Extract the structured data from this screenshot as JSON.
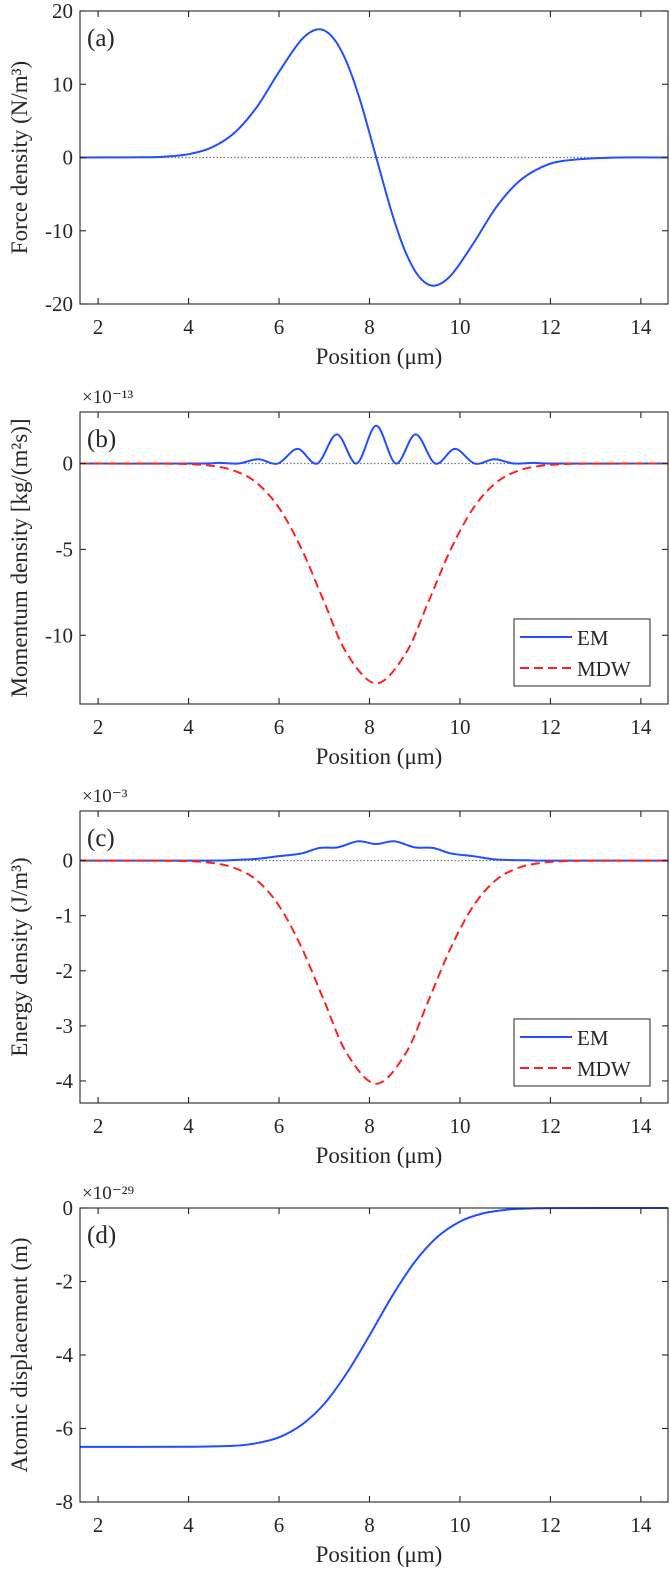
{
  "chart_data": [
    {
      "type": "line",
      "panel": "(a)",
      "xlabel": "Position (μm)",
      "ylabel": "Force density (N/m³)",
      "exponent": "",
      "xlim": [
        1.6,
        14.6
      ],
      "ylim": [
        -20,
        20
      ],
      "xticks": [
        2,
        4,
        6,
        8,
        10,
        12,
        14
      ],
      "yticks": [
        20,
        10,
        0,
        -10,
        -20
      ],
      "zero_line": true,
      "legend": null,
      "series": [
        {
          "name": "Force",
          "color": "#1f4fff",
          "dash": false,
          "x": [
            1.6,
            3,
            3.5,
            4,
            4.5,
            5,
            5.5,
            6,
            6.5,
            6.88,
            7.2,
            7.5,
            7.8,
            8.15,
            8.5,
            8.8,
            9.1,
            9.42,
            9.8,
            10.3,
            10.8,
            11.3,
            11.8,
            12.3,
            13.3,
            14.6
          ],
          "y": [
            0,
            0.03,
            0.13,
            0.45,
            1.34,
            3.29,
            6.8,
            11.7,
            16.1,
            17.5,
            16.3,
            12.95,
            7.67,
            0,
            -7.67,
            -12.95,
            -16.3,
            -17.5,
            -16.1,
            -11.7,
            -6.8,
            -3.29,
            -1.34,
            -0.45,
            -0.03,
            0
          ]
        }
      ]
    },
    {
      "type": "line",
      "panel": "(b)",
      "xlabel": "Position (μm)",
      "ylabel": "Momentum density [kg/(m²s)]",
      "exponent": "×10⁻¹³",
      "xlim": [
        1.6,
        14.6
      ],
      "ylim": [
        -14,
        3
      ],
      "xticks": [
        2,
        4,
        6,
        8,
        10,
        12,
        14
      ],
      "yticks": [
        0,
        -5,
        -10
      ],
      "zero_line": true,
      "legend": {
        "position": "bottom-right",
        "entries": [
          "EM",
          "MDW"
        ]
      },
      "series": [
        {
          "name": "EM",
          "color": "#1f4fff",
          "dash": false,
          "x": [
            1.6,
            4.2,
            4.67,
            5.1,
            5.54,
            5.975,
            6.41,
            6.845,
            7.28,
            7.715,
            8.15,
            8.585,
            9.02,
            9.455,
            9.89,
            10.325,
            10.76,
            11.195,
            11.63,
            12.1,
            14.6
          ],
          "y": [
            0,
            0,
            0.04,
            0,
            0.25,
            0,
            0.85,
            0,
            1.7,
            0,
            2.2,
            0,
            1.7,
            0,
            0.85,
            0,
            0.25,
            0,
            0.04,
            0,
            0
          ]
        },
        {
          "name": "MDW",
          "color": "#ff2020",
          "dash": true,
          "x": [
            1.6,
            3,
            3.5,
            4,
            4.5,
            5,
            5.5,
            6,
            6.5,
            7,
            7.5,
            8.15,
            8.8,
            9.3,
            9.8,
            10.3,
            10.8,
            11.3,
            11.8,
            12.3,
            12.8,
            13.3,
            14.6
          ],
          "y": [
            0,
            -0.001,
            -0.007,
            -0.033,
            -0.13,
            -0.41,
            -1.11,
            -2.58,
            -4.98,
            -8.07,
            -11.06,
            -12.8,
            -11.06,
            -8.07,
            -4.98,
            -2.58,
            -1.11,
            -0.41,
            -0.13,
            -0.033,
            -0.007,
            -0.001,
            0
          ]
        }
      ]
    },
    {
      "type": "line",
      "panel": "(c)",
      "xlabel": "Position (μm)",
      "ylabel": "Energy density (J/m³)",
      "exponent": "×10⁻³",
      "xlim": [
        1.6,
        14.6
      ],
      "ylim": [
        -4.4,
        0.9
      ],
      "xticks": [
        2,
        4,
        6,
        8,
        10,
        12,
        14
      ],
      "yticks": [
        0,
        -1,
        -2,
        -3,
        -4
      ],
      "zero_line": true,
      "legend": {
        "position": "bottom-right",
        "entries": [
          "EM",
          "MDW"
        ]
      },
      "series": [
        {
          "name": "EM",
          "color": "#1f4fff",
          "dash": false,
          "x": [
            1.6,
            4.5,
            5,
            5.5,
            6,
            6.5,
            6.9,
            7.3,
            7.75,
            8.15,
            8.55,
            9.0,
            9.4,
            9.8,
            10.3,
            10.8,
            11.5,
            12,
            14.6
          ],
          "y": [
            0,
            0,
            0.01,
            0.03,
            0.08,
            0.13,
            0.23,
            0.24,
            0.35,
            0.3,
            0.35,
            0.24,
            0.23,
            0.13,
            0.08,
            0.02,
            0.005,
            0,
            0
          ]
        },
        {
          "name": "MDW",
          "color": "#ff2020",
          "dash": true,
          "x": [
            1.6,
            3,
            3.5,
            4,
            4.5,
            5,
            5.5,
            6,
            6.5,
            7,
            7.5,
            8.15,
            8.8,
            9.3,
            9.8,
            10.3,
            10.8,
            11.3,
            11.8,
            12.3,
            12.8,
            13.3,
            14.6
          ],
          "y": [
            0,
            -0.0003,
            -0.002,
            -0.01,
            -0.041,
            -0.13,
            -0.35,
            -0.82,
            -1.58,
            -2.55,
            -3.5,
            -4.05,
            -3.5,
            -2.55,
            -1.58,
            -0.82,
            -0.35,
            -0.13,
            -0.041,
            -0.01,
            -0.002,
            -0.0003,
            0
          ]
        }
      ]
    },
    {
      "type": "line",
      "panel": "(d)",
      "xlabel": "Position (μm)",
      "ylabel": "Atomic displacement (m)",
      "exponent": "×10⁻²⁹",
      "xlim": [
        1.6,
        14.6
      ],
      "ylim": [
        -8,
        0
      ],
      "xticks": [
        2,
        4,
        6,
        8,
        10,
        12,
        14
      ],
      "yticks": [
        0,
        -2,
        -4,
        -6,
        -8
      ],
      "zero_line": false,
      "legend": null,
      "series": [
        {
          "name": "Displacement",
          "color": "#1f4fff",
          "dash": false,
          "x": [
            1.6,
            4,
            5,
            5.5,
            6,
            6.5,
            7,
            7.5,
            8,
            8.5,
            9,
            9.5,
            10,
            10.5,
            11,
            11.5,
            12,
            14.6
          ],
          "y": [
            -6.5,
            -6.498,
            -6.47,
            -6.4,
            -6.24,
            -5.9,
            -5.33,
            -4.49,
            -3.47,
            -2.4,
            -1.47,
            -0.79,
            -0.37,
            -0.15,
            -0.05,
            -0.015,
            -0.004,
            0
          ]
        }
      ]
    }
  ]
}
